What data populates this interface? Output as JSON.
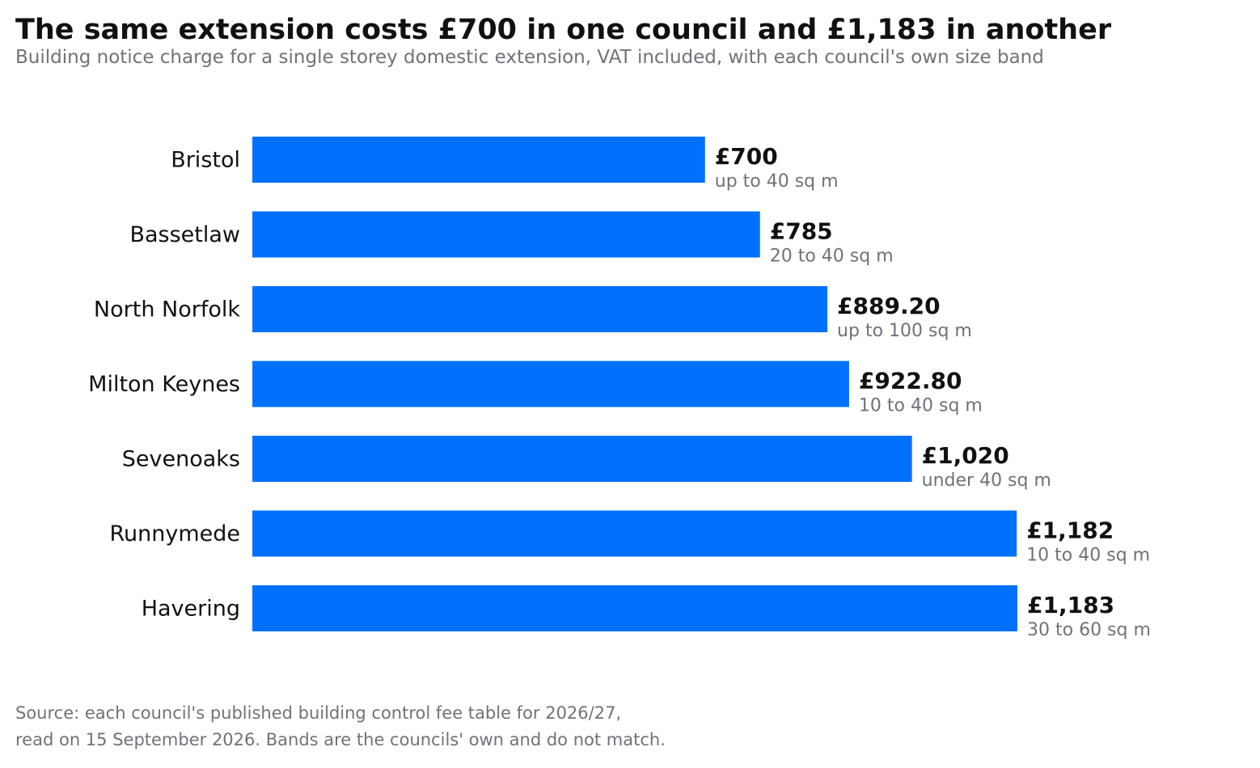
{
  "header": {
    "title": "The same extension costs £700 in one council and £1,183 in another",
    "subtitle": "Building notice charge for a single storey domestic extension, VAT included, with each council's own size band"
  },
  "footer": {
    "source_line1": "Source: each council's published building control fee table for 2026/27,",
    "source_line2": "read on 15 September 2026. Bands are the councils' own and do not match."
  },
  "colors": {
    "bar": "#0070ff",
    "label": "#111111",
    "band": "#71717a"
  },
  "chart_data": {
    "type": "bar",
    "orientation": "horizontal",
    "title": "The same extension costs £700 in one council and £1,183 in another",
    "subtitle": "Building notice charge for a single storey domestic extension, VAT included, with each council's own size band",
    "xlim": [
      0,
      1183
    ],
    "grid": false,
    "categories": [
      "Bristol",
      "Bassetlaw",
      "North Norfolk",
      "Milton Keynes",
      "Sevenoaks",
      "Runnymede",
      "Havering"
    ],
    "values": [
      700,
      785,
      889.2,
      922.8,
      1020,
      1182,
      1183
    ],
    "value_labels": [
      "£700",
      "£785",
      "£889.20",
      "£922.80",
      "£1,020",
      "£1,182",
      "£1,183"
    ],
    "bands": [
      "up to 40 sq m",
      "20 to 40 sq m",
      "up to 100 sq m",
      "10 to 40 sq m",
      "under 40 sq m",
      "10 to 40 sq m",
      "30 to 60 sq m"
    ]
  }
}
